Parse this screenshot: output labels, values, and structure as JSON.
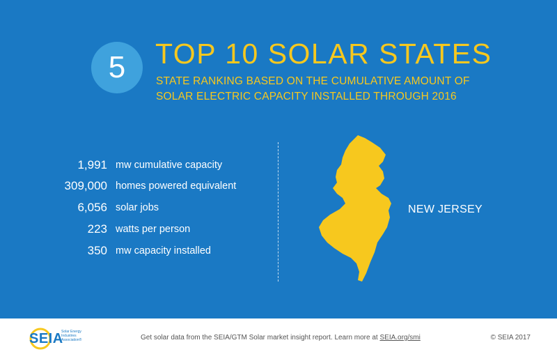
{
  "header": {
    "rank": "5",
    "title": "TOP 10 SOLAR STATES",
    "subtitle": "STATE RANKING BASED ON THE CUMULATIVE AMOUNT OF SOLAR ELECTRIC CAPACITY INSTALLED THROUGH 2016"
  },
  "stats": [
    {
      "value": "1,991",
      "label": "mw cumulative capacity"
    },
    {
      "value": "309,000",
      "label": "homes powered equivalent"
    },
    {
      "value": "6,056",
      "label": "solar jobs"
    },
    {
      "value": "223",
      "label": "watts per person"
    },
    {
      "value": "350",
      "label": "mw capacity installed"
    }
  ],
  "state": {
    "name": "NEW JERSEY",
    "icon": "new-jersey-map-icon"
  },
  "footer": {
    "logo": "SEIA",
    "logo_sub": "Solar Energy Industries Association®",
    "note_prefix": "Get solar data from the SEIA/GTM Solar market insight report. Learn more at ",
    "note_link": "SEIA.org/smi",
    "copyright": "© SEIA 2017"
  },
  "colors": {
    "banner": "#1a79c4",
    "accent": "#f7c81e",
    "circle": "#3fa2dd"
  }
}
